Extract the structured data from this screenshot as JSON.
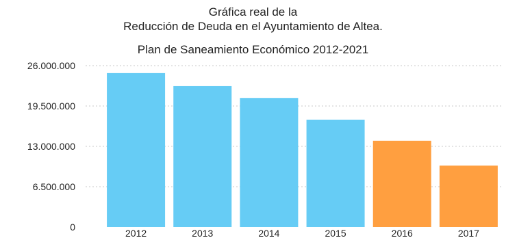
{
  "header": {
    "title_line1": "Gráfica real de la",
    "title_line2": "Reducción de Deuda en el Ayuntamiento de Altea.",
    "subtitle": "Plan de Saneamiento Económico 2012-2021"
  },
  "chart_data": {
    "type": "bar",
    "title": "Gráfica real de la Reducción de Deuda en el Ayuntamiento de Altea.",
    "subtitle": "Plan de Saneamiento Económico 2012-2021",
    "xlabel": "",
    "ylabel": "",
    "categories": [
      "2012",
      "2013",
      "2014",
      "2015",
      "2016",
      "2017"
    ],
    "values": [
      24800000,
      22700000,
      20800000,
      17300000,
      13900000,
      9900000
    ],
    "bar_colors": [
      "#66ccf5",
      "#66ccf5",
      "#66ccf5",
      "#66ccf5",
      "#ff9f40",
      "#ff9f40"
    ],
    "ylim": [
      0,
      26000000
    ],
    "yticks": [
      0,
      6500000,
      13000000,
      19500000,
      26000000
    ],
    "ytick_labels": [
      "0",
      "6.500.000",
      "13.000.000",
      "19.500.000",
      "26.000.000"
    ],
    "grid": true,
    "legend": "none"
  }
}
